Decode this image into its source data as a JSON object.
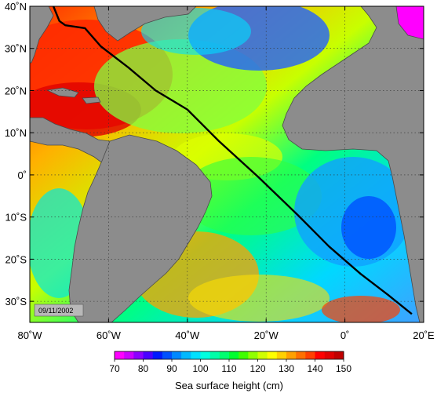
{
  "map": {
    "lon_range": [
      -80,
      20
    ],
    "lat_range": [
      -35,
      40
    ],
    "lon_ticks": [
      {
        "value": -80,
        "label": "80˚W"
      },
      {
        "value": -60,
        "label": "60˚W"
      },
      {
        "value": -40,
        "label": "40˚W"
      },
      {
        "value": -20,
        "label": "20˚W"
      },
      {
        "value": 0,
        "label": "0˚"
      },
      {
        "value": 20,
        "label": "20˚E"
      }
    ],
    "lat_ticks": [
      {
        "value": 40,
        "label": "40˚N"
      },
      {
        "value": 30,
        "label": "30˚N"
      },
      {
        "value": 20,
        "label": "20˚N"
      },
      {
        "value": 10,
        "label": "10˚N"
      },
      {
        "value": 0,
        "label": "0˚"
      },
      {
        "value": -10,
        "label": "10˚S"
      },
      {
        "value": -20,
        "label": "20˚S"
      },
      {
        "value": -30,
        "label": "30˚S"
      }
    ],
    "date_label": "09/11/2002",
    "land_color": "#8c8c8c",
    "track_color": "#000000",
    "track": [
      [
        -74.0,
        40.0
      ],
      [
        -72.5,
        36.5
      ],
      [
        -71.0,
        35.5
      ],
      [
        -66.0,
        34.8
      ],
      [
        -62.0,
        30.5
      ],
      [
        -55.0,
        25.5
      ],
      [
        -48.0,
        20.0
      ],
      [
        -40.0,
        15.5
      ],
      [
        -32.0,
        8.0
      ],
      [
        -22.0,
        -0.5
      ],
      [
        -12.0,
        -9.5
      ],
      [
        -4.0,
        -17.0
      ],
      [
        4.0,
        -23.5
      ],
      [
        11.0,
        -28.5
      ],
      [
        17.0,
        -33.0
      ]
    ]
  },
  "colorbar": {
    "title": "Sea surface height (cm)",
    "ticks": [
      "70",
      "80",
      "90",
      "100",
      "110",
      "120",
      "130",
      "140",
      "150"
    ],
    "colors": [
      "#ff00ff",
      "#cc00ff",
      "#8c00ff",
      "#4b00ff",
      "#0018ff",
      "#0050ff",
      "#0088ff",
      "#00b8ff",
      "#00e0ff",
      "#00ffe0",
      "#00ffa8",
      "#00ff70",
      "#00ff30",
      "#40ff00",
      "#90ff00",
      "#d0ff00",
      "#ffff00",
      "#ffd000",
      "#ffa000",
      "#ff7000",
      "#ff4000",
      "#ff0000",
      "#e00000",
      "#c00000"
    ]
  }
}
